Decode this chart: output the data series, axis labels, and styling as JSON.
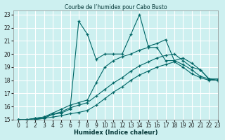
{
  "title": "Courbe de l’humidex pour Cabo Busto",
  "xlabel": "Humidex (Indice chaleur)",
  "bg_color": "#cdf0f0",
  "grid_color": "#ffffff",
  "line_color": "#006666",
  "xlim": [
    -0.5,
    23
  ],
  "ylim": [
    15,
    23.3
  ],
  "xticks": [
    0,
    1,
    2,
    3,
    4,
    5,
    6,
    7,
    8,
    9,
    10,
    11,
    12,
    13,
    14,
    15,
    16,
    17,
    18,
    19,
    20,
    21,
    22,
    23
  ],
  "yticks": [
    15,
    16,
    17,
    18,
    19,
    20,
    21,
    22,
    23
  ],
  "series": {
    "zigzag": {
      "x": [
        0,
        1,
        2,
        3,
        4,
        5,
        6,
        7,
        8,
        9,
        10,
        11,
        12,
        13,
        14,
        15,
        16,
        17,
        18,
        19,
        20,
        21,
        22,
        23
      ],
      "y": [
        15,
        14.9,
        15.0,
        15.1,
        15.4,
        15.5,
        15.8,
        22.5,
        21.5,
        19.6,
        20.0,
        20.0,
        20.0,
        21.5,
        23.0,
        20.6,
        20.8,
        21.1,
        19.5,
        19.7,
        19.3,
        18.8,
        18.1,
        18.1
      ]
    },
    "line2": {
      "x": [
        0,
        1,
        2,
        3,
        4,
        5,
        6,
        7,
        8,
        9,
        10,
        11,
        12,
        13,
        14,
        15,
        16,
        17,
        18,
        19,
        20,
        21,
        22,
        23
      ],
      "y": [
        15,
        15.0,
        15.1,
        15.2,
        15.5,
        15.8,
        16.1,
        16.3,
        16.5,
        17.8,
        19.0,
        19.5,
        19.8,
        20.0,
        20.3,
        20.5,
        20.5,
        19.5,
        19.5,
        19.2,
        18.8,
        18.3,
        18.1,
        18.0
      ]
    },
    "line3": {
      "x": [
        0,
        1,
        2,
        3,
        4,
        5,
        6,
        7,
        8,
        9,
        10,
        11,
        12,
        13,
        14,
        15,
        16,
        17,
        18,
        19,
        20,
        21,
        22,
        23
      ],
      "y": [
        15,
        15.0,
        15.1,
        15.2,
        15.4,
        15.6,
        15.9,
        16.1,
        16.3,
        16.8,
        17.3,
        17.8,
        18.2,
        18.7,
        19.1,
        19.4,
        19.7,
        19.9,
        20.0,
        19.5,
        19.0,
        18.8,
        18.1,
        18.0
      ]
    },
    "line4": {
      "x": [
        0,
        1,
        2,
        3,
        4,
        5,
        6,
        7,
        8,
        9,
        10,
        11,
        12,
        13,
        14,
        15,
        16,
        17,
        18,
        19,
        20,
        21,
        22,
        23
      ],
      "y": [
        15,
        15.0,
        15.05,
        15.1,
        15.2,
        15.3,
        15.45,
        15.55,
        15.7,
        16.1,
        16.6,
        17.1,
        17.5,
        18.0,
        18.4,
        18.7,
        19.0,
        19.2,
        19.4,
        19.0,
        18.5,
        18.2,
        18.0,
        18.0
      ]
    }
  }
}
